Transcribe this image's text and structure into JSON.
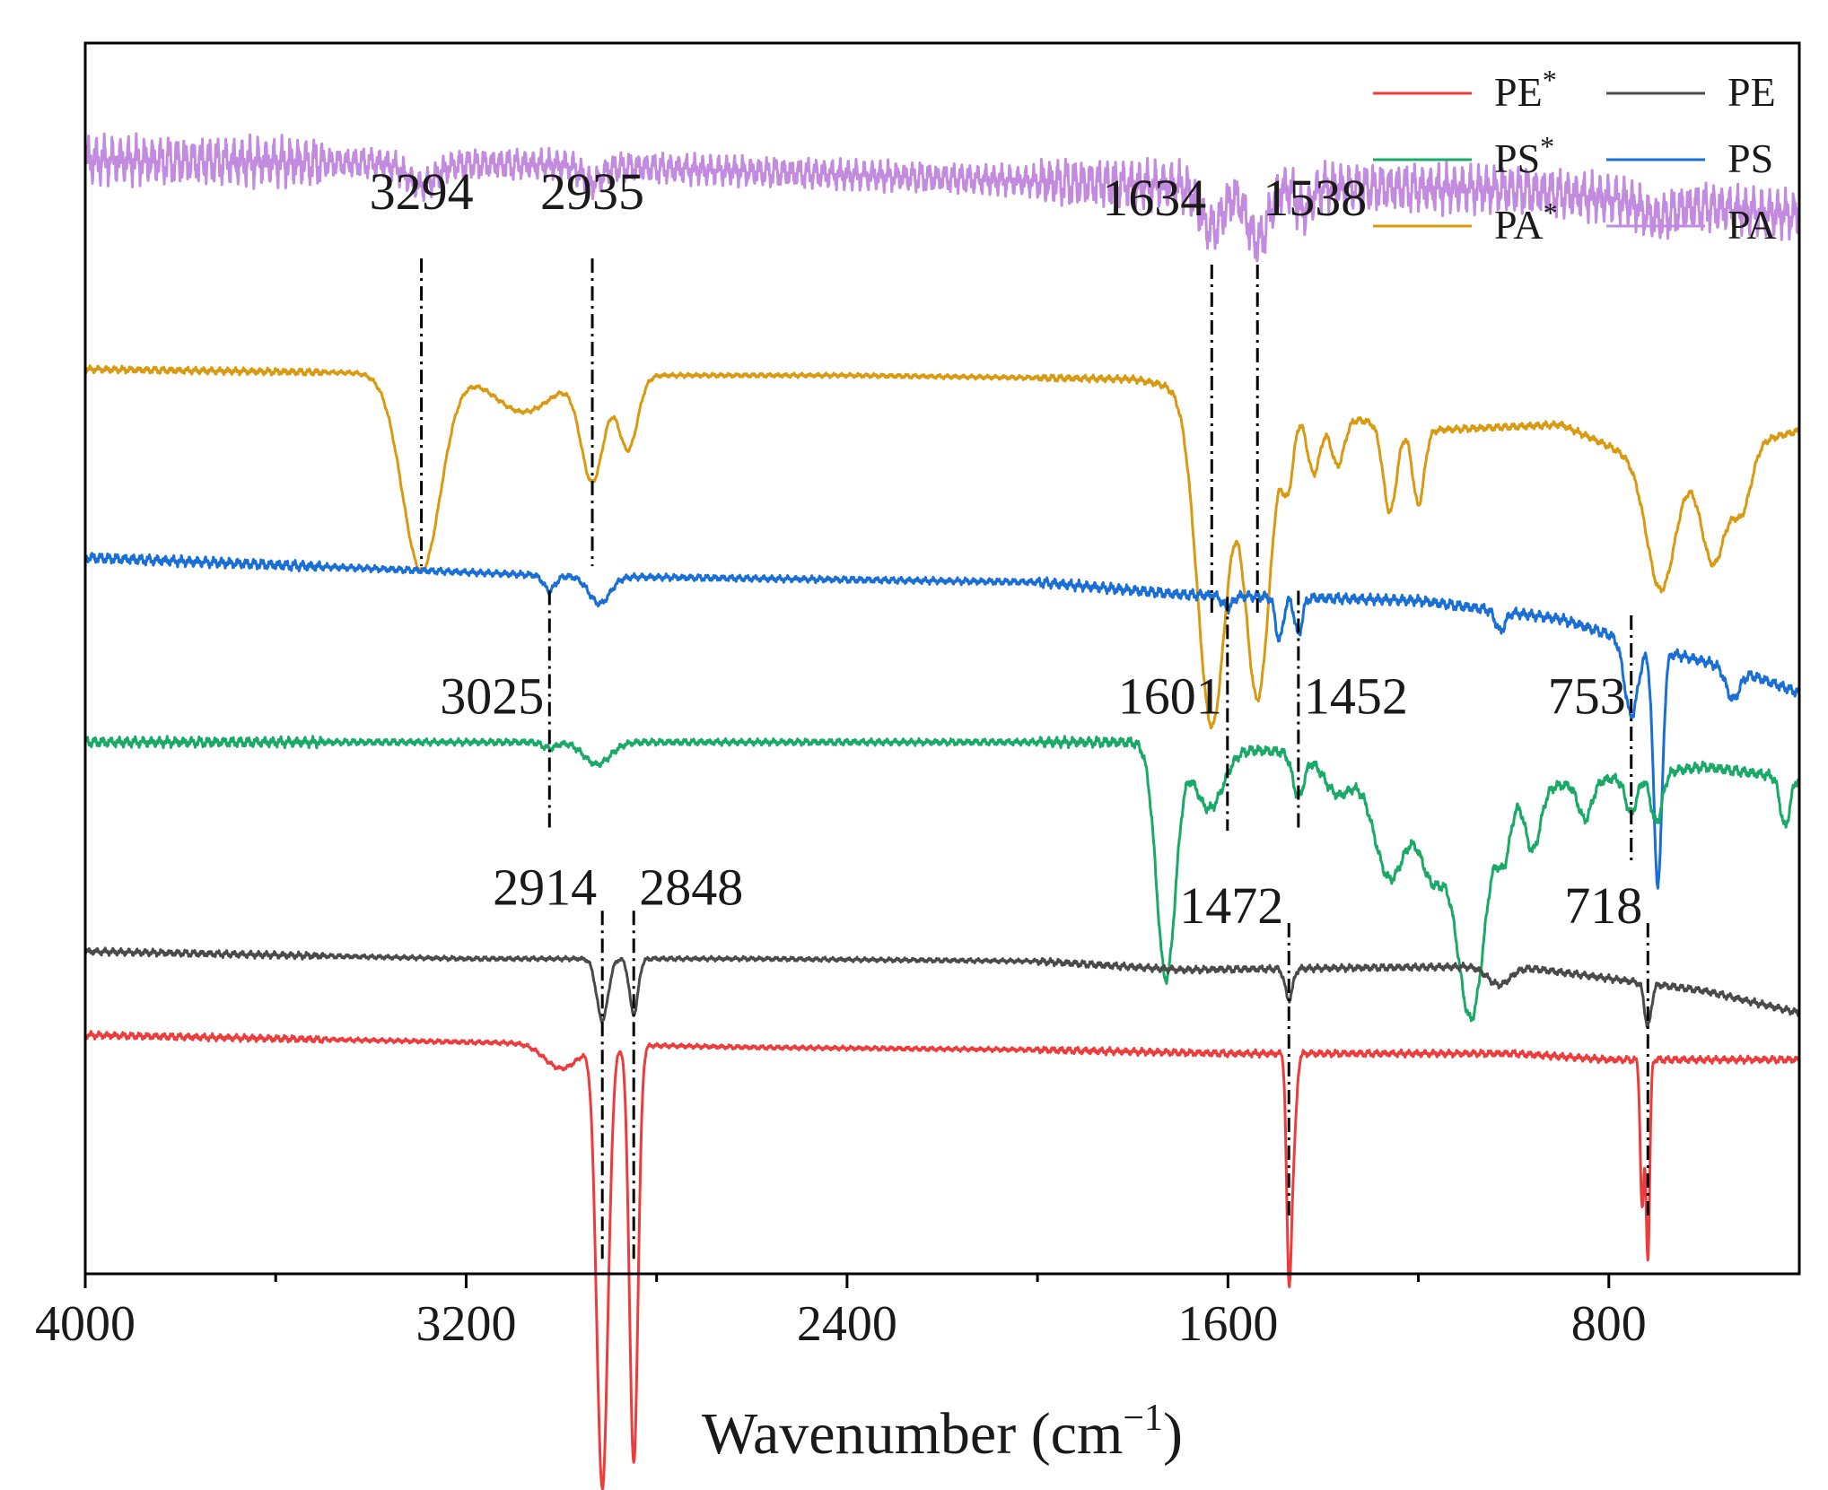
{
  "chart_data": {
    "type": "line",
    "title": "",
    "xlabel": "Wavenumber (cm",
    "xlabel_sup": "−1",
    "xlabel_end": ")",
    "ylabel": "",
    "xlim": [
      4000,
      400
    ],
    "x_reversed": true,
    "x_ticks": [
      4000,
      3200,
      2400,
      1600,
      800
    ],
    "x_tick_labels": [
      "4000",
      "3200",
      "2400",
      "1600",
      "800"
    ],
    "x_minor_ticks": [
      3600,
      2800,
      2000,
      1200
    ],
    "y_ticks_visible": false,
    "grid": false,
    "legend_position": "top-right",
    "colors": {
      "PE*": "#ee3b3b",
      "PE": "#4a4a4a",
      "PS*": "#1aaa68",
      "PS": "#1a6fd6",
      "PA*": "#d99a12",
      "PA": "#c38be0"
    },
    "series": [
      {
        "name": "PA",
        "label": "PA",
        "sup": "",
        "offset": 0.905,
        "noise": 0.014,
        "baseline": [
          [
            4000,
            0.0
          ],
          [
            3000,
            -0.004
          ],
          [
            2400,
            -0.012
          ],
          [
            1800,
            -0.02
          ],
          [
            1000,
            -0.024
          ],
          [
            700,
            -0.035
          ],
          [
            400,
            -0.045
          ]
        ],
        "peaks": [
          [
            3294,
            0.018,
            30
          ],
          [
            2935,
            0.014,
            20
          ],
          [
            1634,
            0.035,
            25
          ],
          [
            1538,
            0.045,
            22
          ],
          [
            1440,
            0.02,
            15
          ],
          [
            700,
            0.012,
            30
          ]
        ]
      },
      {
        "name": "PA*",
        "label": "PA",
        "sup": "*",
        "offset": 0.735,
        "noise": 0.002,
        "baseline": [
          [
            4000,
            0.0
          ],
          [
            3000,
            -0.005
          ],
          [
            2400,
            -0.005
          ],
          [
            1800,
            -0.008
          ],
          [
            1200,
            -0.05
          ],
          [
            900,
            -0.045
          ],
          [
            700,
            -0.08
          ],
          [
            500,
            -0.06
          ],
          [
            400,
            -0.05
          ]
        ],
        "peaks": [
          [
            3294,
            0.16,
            40
          ],
          [
            3080,
            0.03,
            60
          ],
          [
            2935,
            0.085,
            24
          ],
          [
            2860,
            0.06,
            20
          ],
          [
            1634,
            0.27,
            30
          ],
          [
            1538,
            0.24,
            26
          ],
          [
            1474,
            0.06,
            12
          ],
          [
            1420,
            0.05,
            14
          ],
          [
            1370,
            0.04,
            14
          ],
          [
            1260,
            0.07,
            14
          ],
          [
            1200,
            0.06,
            12
          ],
          [
            690,
            0.1,
            30
          ],
          [
            580,
            0.09,
            26
          ],
          [
            520,
            0.05,
            20
          ]
        ]
      },
      {
        "name": "PS",
        "label": "PS",
        "sup": "",
        "offset": 0.582,
        "noise": 0.003,
        "baseline": [
          [
            4000,
            0.0
          ],
          [
            3000,
            -0.015
          ],
          [
            2000,
            -0.02
          ],
          [
            1700,
            -0.03
          ],
          [
            1200,
            -0.035
          ],
          [
            900,
            -0.05
          ],
          [
            700,
            -0.075
          ],
          [
            540,
            -0.09
          ],
          [
            400,
            -0.11
          ]
        ],
        "peaks": [
          [
            3025,
            0.012,
            12
          ],
          [
            2920,
            0.022,
            22
          ],
          [
            1601,
            0.01,
            10
          ],
          [
            1492,
            0.035,
            8
          ],
          [
            1452,
            0.03,
            8
          ],
          [
            1028,
            0.016,
            10
          ],
          [
            753,
            0.06,
            14
          ],
          [
            697,
            0.19,
            9
          ],
          [
            540,
            0.025,
            14
          ]
        ]
      },
      {
        "name": "PS*",
        "label": "PS",
        "sup": "*",
        "offset": 0.432,
        "noise": 0.003,
        "baseline": [
          [
            4000,
            0.0
          ],
          [
            3100,
            0.0
          ],
          [
            2400,
            0.0
          ],
          [
            1800,
            0.0
          ],
          [
            1400,
            -0.01
          ],
          [
            1000,
            -0.04
          ],
          [
            800,
            -0.03
          ],
          [
            600,
            -0.02
          ],
          [
            400,
            -0.03
          ]
        ],
        "peaks": [
          [
            3025,
            0.005,
            14
          ],
          [
            2925,
            0.018,
            28
          ],
          [
            1730,
            0.19,
            20
          ],
          [
            1640,
            0.05,
            30
          ],
          [
            1452,
            0.035,
            12
          ],
          [
            1370,
            0.03,
            30
          ],
          [
            1260,
            0.09,
            34
          ],
          [
            1170,
            0.08,
            28
          ],
          [
            1090,
            0.19,
            30
          ],
          [
            1020,
            0.05,
            14
          ],
          [
            960,
            0.05,
            16
          ],
          [
            850,
            0.03,
            14
          ],
          [
            753,
            0.03,
            12
          ],
          [
            700,
            0.04,
            12
          ],
          [
            430,
            0.04,
            10
          ]
        ]
      },
      {
        "name": "PE",
        "label": "PE",
        "sup": "",
        "offset": 0.262,
        "noise": 0.002,
        "baseline": [
          [
            4000,
            0.0
          ],
          [
            3200,
            -0.006
          ],
          [
            2600,
            -0.006
          ],
          [
            2000,
            -0.008
          ],
          [
            1700,
            -0.015
          ],
          [
            1000,
            -0.012
          ],
          [
            800,
            -0.022
          ],
          [
            600,
            -0.032
          ],
          [
            400,
            -0.05
          ]
        ],
        "peaks": [
          [
            2914,
            0.05,
            12
          ],
          [
            2848,
            0.045,
            9
          ],
          [
            1472,
            0.025,
            8
          ],
          [
            1030,
            0.015,
            24
          ],
          [
            718,
            0.035,
            7
          ]
        ]
      },
      {
        "name": "PE*",
        "label": "PE",
        "sup": "*",
        "offset": 0.194,
        "noise": 0.002,
        "baseline": [
          [
            4000,
            0.0
          ],
          [
            3300,
            -0.005
          ],
          [
            2600,
            -0.01
          ],
          [
            2000,
            -0.012
          ],
          [
            1600,
            -0.015
          ],
          [
            1000,
            -0.015
          ],
          [
            800,
            -0.02
          ],
          [
            600,
            -0.02
          ],
          [
            400,
            -0.02
          ]
        ],
        "peaks": [
          [
            3000,
            0.02,
            35
          ],
          [
            2914,
            0.36,
            12
          ],
          [
            2848,
            0.34,
            9
          ],
          [
            1472,
            0.17,
            5
          ],
          [
            1462,
            0.07,
            6
          ],
          [
            730,
            0.12,
            4
          ],
          [
            718,
            0.16,
            4
          ]
        ]
      }
    ],
    "annotations": [
      {
        "text": "3294",
        "x": 3294,
        "line_top": 0.825,
        "line_bottom": 0.575,
        "label_y": 0.865,
        "align": "center"
      },
      {
        "text": "2935",
        "x": 2935,
        "line_top": 0.825,
        "line_bottom": 0.575,
        "label_y": 0.865,
        "align": "center"
      },
      {
        "text": "1634",
        "x": 1634,
        "line_top": 0.82,
        "line_bottom": 0.535,
        "label_y": 0.86,
        "align": "right"
      },
      {
        "text": "1538",
        "x": 1538,
        "line_top": 0.82,
        "line_bottom": 0.535,
        "label_y": 0.86,
        "align": "left"
      },
      {
        "text": "3025",
        "x": 3025,
        "line_top": 0.555,
        "line_bottom": 0.36,
        "label_y": 0.455,
        "align": "right"
      },
      {
        "text": "1601",
        "x": 1601,
        "line_top": 0.55,
        "line_bottom": 0.36,
        "label_y": 0.455,
        "align": "right"
      },
      {
        "text": "1452",
        "x": 1452,
        "line_top": 0.555,
        "line_bottom": 0.36,
        "label_y": 0.455,
        "align": "left"
      },
      {
        "text": "753",
        "x": 753,
        "line_top": 0.535,
        "line_bottom": 0.335,
        "label_y": 0.455,
        "align": "right"
      },
      {
        "text": "2914",
        "x": 2914,
        "line_top": 0.295,
        "line_bottom": 0.01,
        "label_y": 0.3,
        "align": "right"
      },
      {
        "text": "2848",
        "x": 2848,
        "line_top": 0.295,
        "line_bottom": 0.01,
        "label_y": 0.3,
        "align": "left"
      },
      {
        "text": "1472",
        "x": 1472,
        "line_top": 0.285,
        "line_bottom": 0.045,
        "label_y": 0.285,
        "align": "right"
      },
      {
        "text": "718",
        "x": 718,
        "line_top": 0.285,
        "line_bottom": 0.045,
        "label_y": 0.285,
        "align": "right"
      }
    ],
    "legend": {
      "columns": [
        [
          "PE*",
          "PS*",
          "PA*"
        ],
        [
          "PE",
          "PS",
          "PA"
        ]
      ]
    }
  }
}
